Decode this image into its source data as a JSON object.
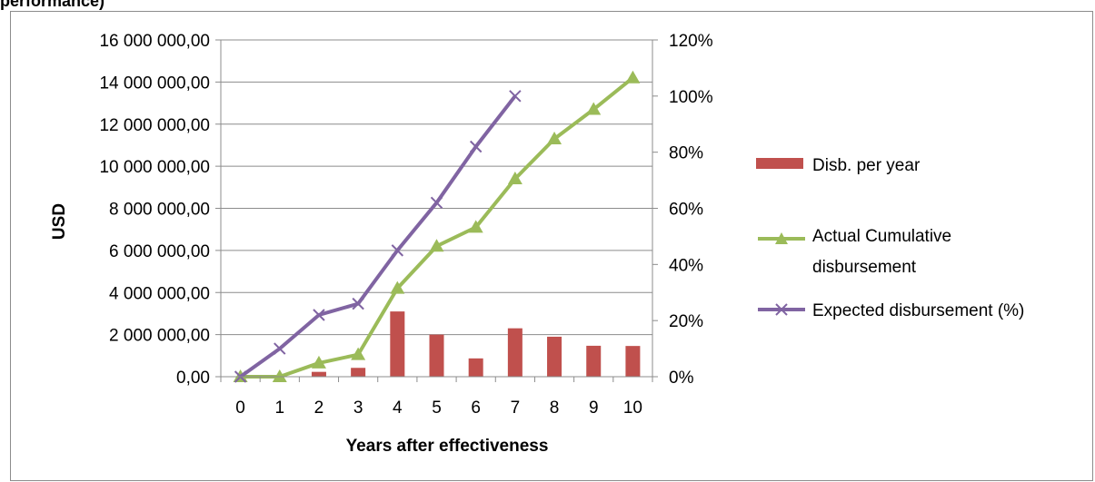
{
  "page": {
    "heading_fragment": "performance)"
  },
  "chart_data": {
    "type": "bar",
    "categories": [
      "0",
      "1",
      "2",
      "3",
      "4",
      "5",
      "6",
      "7",
      "8",
      "9",
      "10"
    ],
    "xlabel": "Years after effectiveness",
    "ylabel": "USD",
    "ylim": [
      0,
      16000000
    ],
    "y2lim": [
      0,
      1.2
    ],
    "y_ticks": [
      "0,00",
      "2 000 000,00",
      "4 000 000,00",
      "6 000 000,00",
      "8 000 000,00",
      "10 000 000,00",
      "12 000 000,00",
      "14 000 000,00",
      "16 000 000,00"
    ],
    "y2_ticks": [
      "0%",
      "20%",
      "40%",
      "60%",
      "80%",
      "100%",
      "120%"
    ],
    "grid": true,
    "legend_position": "right",
    "series": [
      {
        "name": "Disb. per year",
        "kind": "bar",
        "axis": "left",
        "color": "#c0504d",
        "values": [
          0,
          0,
          230000,
          420000,
          3100000,
          2000000,
          870000,
          2300000,
          1900000,
          1470000,
          1460000
        ]
      },
      {
        "name": "Actual Cumulative disbursement",
        "kind": "line",
        "axis": "left",
        "color": "#9bbb59",
        "marker": "triangle",
        "values": [
          0,
          0,
          650000,
          1050000,
          4200000,
          6200000,
          7100000,
          9400000,
          11300000,
          12700000,
          14200000
        ]
      },
      {
        "name": "Expected disbursement (%)",
        "kind": "line",
        "axis": "right",
        "color": "#8064a2",
        "marker": "x",
        "values": [
          0,
          0.1,
          0.22,
          0.26,
          0.45,
          0.62,
          0.82,
          1.0,
          null,
          null,
          null
        ]
      }
    ],
    "legend": {
      "bar_label": "Disb. per year",
      "line1_label_a": "Actual Cumulative",
      "line1_label_b": "disbursement",
      "line2_label": "Expected disbursement (%)"
    }
  }
}
